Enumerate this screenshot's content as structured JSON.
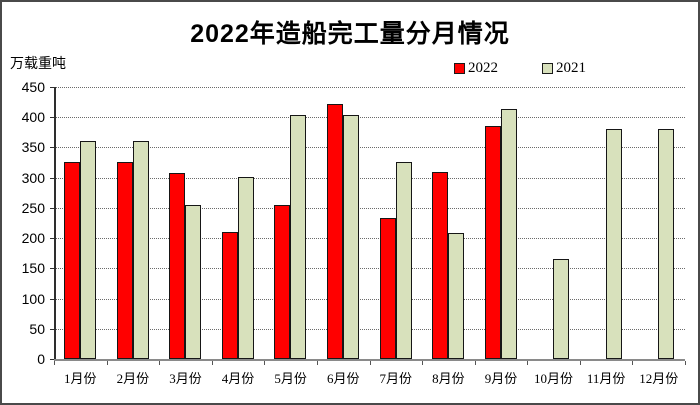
{
  "window": {
    "background": "#ffffff",
    "border_color": "#4a4a4a"
  },
  "chart_data": {
    "type": "bar",
    "title": "2022年造船完工量分月情况",
    "ylabel": "万载重吨",
    "xlabel": "",
    "categories": [
      "1月份",
      "2月份",
      "3月份",
      "4月份",
      "5月份",
      "6月份",
      "7月份",
      "8月份",
      "9月份",
      "10月份",
      "11月份",
      "12月份"
    ],
    "series": [
      {
        "name": "2022",
        "color": "#ff0000",
        "values": [
          326,
          326,
          308,
          210,
          255,
          422,
          234,
          309,
          386,
          null,
          null,
          null
        ]
      },
      {
        "name": "2021",
        "color": "#d8e1bc",
        "values": [
          361,
          361,
          254,
          301,
          404,
          404,
          326,
          208,
          413,
          166,
          381,
          381
        ]
      }
    ],
    "ylim": [
      0,
      450
    ],
    "ytick_step": 50,
    "y_ticks": [
      0,
      50,
      100,
      150,
      200,
      250,
      300,
      350,
      400,
      450
    ],
    "grid": true,
    "gridline_style": "dotted",
    "legend_position": "top-right",
    "colors": {
      "y_axis": "#2e2e2e",
      "x_axis": "#8a8a8a",
      "gridline": "#6b6b6b",
      "bar_border": "#161616",
      "text": "#000000"
    }
  }
}
